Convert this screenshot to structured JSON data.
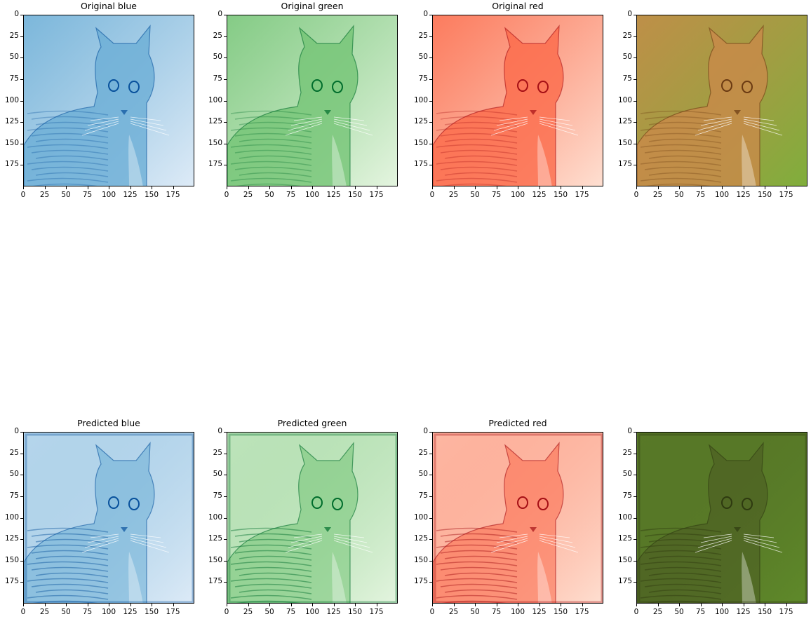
{
  "panels": [
    {
      "id": "orig-blue",
      "title": "Original blue",
      "scheme": "blue",
      "mode": "orig"
    },
    {
      "id": "orig-green",
      "title": "Original green",
      "scheme": "green",
      "mode": "orig"
    },
    {
      "id": "orig-red",
      "title": "Original red",
      "scheme": "red",
      "mode": "orig"
    },
    {
      "id": "orig-color",
      "title": "",
      "scheme": "color",
      "mode": "orig"
    },
    {
      "id": "pred-blue",
      "title": "Predicted blue",
      "scheme": "blue",
      "mode": "pred"
    },
    {
      "id": "pred-green",
      "title": "Predicted green",
      "scheme": "green",
      "mode": "pred"
    },
    {
      "id": "pred-red",
      "title": "Predicted red",
      "scheme": "red",
      "mode": "pred"
    },
    {
      "id": "pred-color",
      "title": "",
      "scheme": "color",
      "mode": "pred"
    }
  ],
  "axes": {
    "yticks": [
      "0",
      "25",
      "50",
      "75",
      "100",
      "125",
      "150",
      "175"
    ],
    "xticks": [
      "0",
      "25",
      "50",
      "75",
      "100",
      "125",
      "150",
      "175"
    ],
    "xlim": [
      0,
      200
    ],
    "ylim": [
      0,
      200
    ]
  },
  "colors": {
    "blue_light": "#deebf7",
    "blue_mid": "#6baed6",
    "blue_dark": "#08519c",
    "green_light": "#e5f5e0",
    "green_mid": "#74c476",
    "green_dark": "#006d2c",
    "red_light": "#fee0d2",
    "red_mid": "#fb6a4a",
    "red_dark": "#a50f15",
    "grass": "#7fae3c",
    "fur": "#c98a4a",
    "grass_pred": "#5f8a2a",
    "fur_pred": "#4a5a22"
  }
}
